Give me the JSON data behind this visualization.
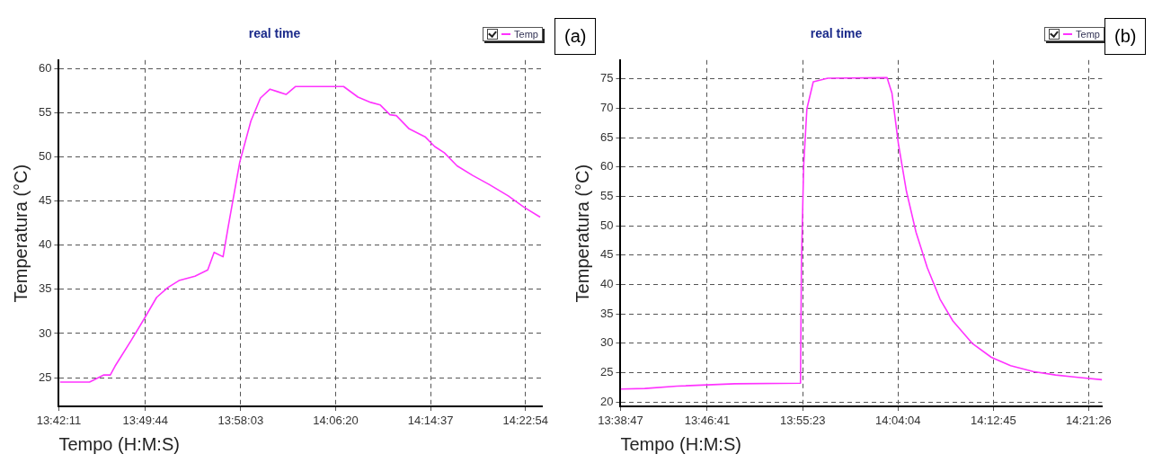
{
  "chart_data": [
    {
      "type": "line",
      "title": "real time",
      "xlabel": "Tempo (H:M:S)",
      "ylabel": "Temperatura (°C)",
      "annotations": [
        "(a)"
      ],
      "legend": "top right",
      "grid": true,
      "x": [
        13.7049,
        13.7477,
        13.7686,
        13.7779,
        13.7848,
        13.8081,
        13.8267,
        13.8453,
        13.8615,
        13.8778,
        13.901,
        13.9196,
        13.9289,
        13.9419,
        13.9498,
        13.9661,
        13.9824,
        13.9963,
        14.0102,
        14.0219,
        14.0335,
        14.0474,
        14.1172,
        14.1381,
        14.1567,
        14.1706,
        14.1846,
        14.1939,
        14.2125,
        14.2357,
        14.2497,
        14.2636,
        14.2822,
        14.3054,
        14.3287,
        14.3566,
        14.3798,
        14.403
      ],
      "series": [
        {
          "name": "Temp",
          "color": "#ff33ff",
          "values": [
            24.5,
            24.5,
            25.3,
            25.3,
            26.3,
            29.2,
            31.6,
            34.1,
            35.2,
            36.0,
            36.5,
            37.2,
            39.2,
            38.7,
            42.3,
            49.4,
            54.1,
            56.7,
            57.7,
            57.4,
            57.1,
            58.0,
            58.0,
            56.8,
            56.2,
            55.9,
            54.8,
            54.7,
            53.2,
            52.3,
            51.2,
            50.5,
            49.0,
            47.9,
            46.9,
            45.6,
            44.3,
            43.2
          ]
        }
      ],
      "xlim": [
        13.70306,
        14.40556
      ],
      "ylim": [
        21.7,
        61
      ],
      "xticks": [
        {
          "value": 13.70306,
          "label": "13:42:11"
        },
        {
          "value": 13.82889,
          "label": "13:49:44"
        },
        {
          "value": 13.9675,
          "label": "13:58:03"
        },
        {
          "value": 14.10556,
          "label": "14:06:20"
        },
        {
          "value": 14.24361,
          "label": "14:14:37"
        },
        {
          "value": 14.38167,
          "label": "14:22:54"
        }
      ],
      "yticks": [
        25,
        30,
        35,
        40,
        45,
        50,
        55,
        60
      ]
    },
    {
      "type": "line",
      "title": "real time",
      "xlabel": "Tempo (H:M:S)",
      "ylabel": "Temperatura (°C)",
      "annotations": [
        "(b)"
      ],
      "legend": "top right",
      "grid": true,
      "x": [
        13.6468,
        13.6833,
        13.732,
        13.8197,
        13.9197,
        13.9211,
        13.9245,
        13.9294,
        13.9391,
        13.9611,
        14.0512,
        14.0585,
        14.0683,
        14.0805,
        14.0951,
        14.1121,
        14.1316,
        14.1511,
        14.1803,
        14.2096,
        14.2388,
        14.2729,
        14.307,
        14.3411,
        14.3777
      ],
      "series": [
        {
          "name": "Temp",
          "color": "#ff33ff",
          "values": [
            22.2,
            22.3,
            22.7,
            23.1,
            23.2,
            43.5,
            60.2,
            69.9,
            74.5,
            75.1,
            75.2,
            72.6,
            64.0,
            55.9,
            48.9,
            42.9,
            37.5,
            33.8,
            30.0,
            27.6,
            26.2,
            25.2,
            24.6,
            24.2,
            23.8
          ]
        }
      ],
      "xlim": [
        13.64639,
        14.3777
      ],
      "ylim": [
        19.2,
        78.2
      ],
      "xticks": [
        {
          "value": 13.64639,
          "label": "13:38:47"
        },
        {
          "value": 13.77806,
          "label": "13:46:41"
        },
        {
          "value": 13.92306,
          "label": "13:55:23"
        },
        {
          "value": 14.06778,
          "label": "14:04:04"
        },
        {
          "value": 14.2125,
          "label": "14:12:45"
        },
        {
          "value": 14.35722,
          "label": "14:21:26"
        }
      ],
      "yticks": [
        20,
        25,
        30,
        35,
        40,
        45,
        50,
        55,
        60,
        65,
        70,
        75
      ]
    }
  ]
}
